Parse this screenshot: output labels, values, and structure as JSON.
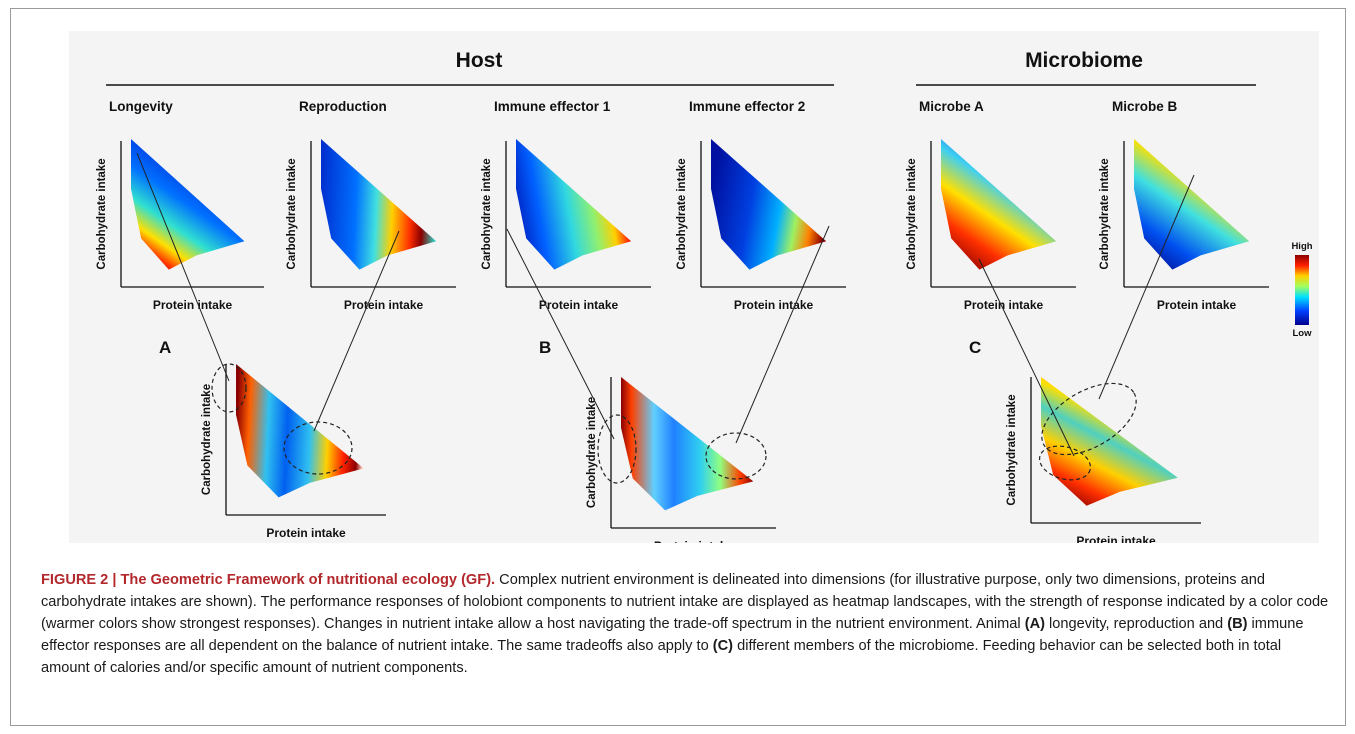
{
  "groups": {
    "host": "Host",
    "microbiome": "Microbiome"
  },
  "top_panels": [
    {
      "id": "longevity",
      "title": "Longevity"
    },
    {
      "id": "reproduction",
      "title": "Reproduction"
    },
    {
      "id": "immune1",
      "title": "Immune effector 1"
    },
    {
      "id": "immune2",
      "title": "Immune effector 2"
    },
    {
      "id": "microbeA",
      "title": "Microbe A"
    },
    {
      "id": "microbeB",
      "title": "Microbe B"
    }
  ],
  "bottom_panels": [
    {
      "id": "A",
      "letter": "A"
    },
    {
      "id": "B",
      "letter": "B"
    },
    {
      "id": "C",
      "letter": "C"
    }
  ],
  "axis": {
    "x": "Protein intake",
    "y": "Carbohydrate intake"
  },
  "legend": {
    "high": "High",
    "low": "Low"
  },
  "colors": {
    "caption_title": "#b3282d",
    "heat_low": "#00008b",
    "heat_high": "#8b0000"
  },
  "caption": {
    "title": "FIGURE 2 | The Geometric Framework of nutritional ecology (GF).",
    "t1": " Complex nutrient environment is delineated into dimensions (for illustrative purpose, only two dimensions, proteins and carbohydrate intakes are shown). The performance responses of holobiont components to nutrient intake are displayed as heatmap landscapes, with the strength of response indicated by a color code (warmer colors show strongest responses). Changes in nutrient intake allow a host navigating the trade-off spectrum in the nutrient environment. Animal ",
    "refA": "(A)",
    "t2": " longevity, reproduction and ",
    "refB": "(B)",
    "t3": " immune effector responses are all dependent on the balance of nutrient intake. The same tradeoffs also apply to ",
    "refC": "(C)",
    "t4": " different members of the microbiome. Feeding behavior can be selected both in total amount of calories and/or specific amount of nutrient components."
  }
}
